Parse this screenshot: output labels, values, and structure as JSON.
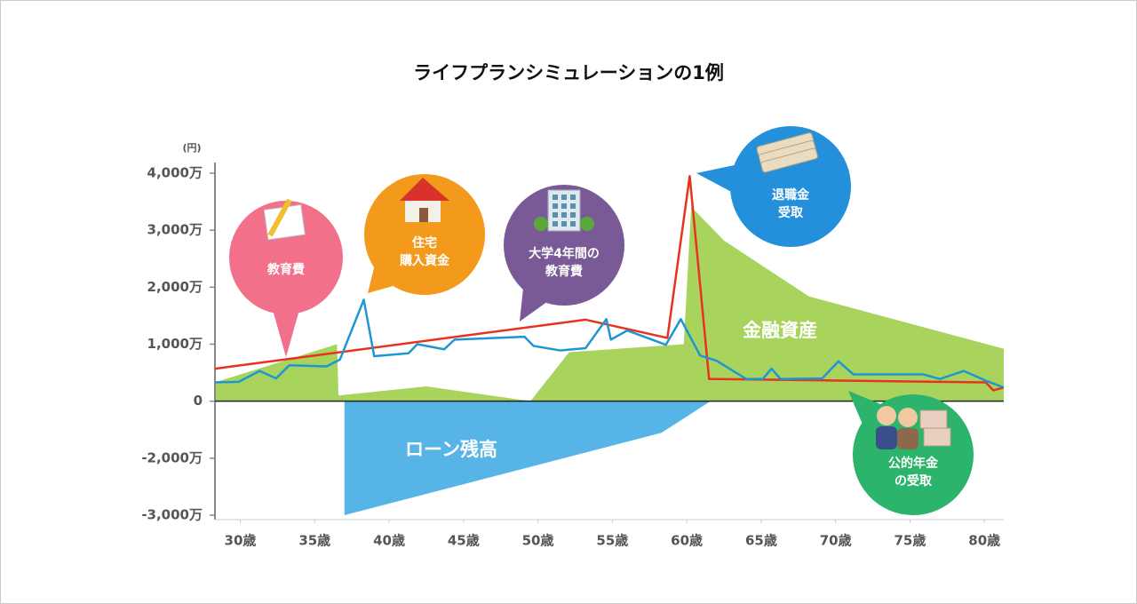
{
  "chart_data": {
    "type": "line",
    "title": "ライフプランシミュレーションの1例",
    "y_unit": "(円)",
    "xlim": [
      28.3,
      81.3
    ],
    "xticks": [
      {
        "value": 30,
        "label": "30歳"
      },
      {
        "value": 35,
        "label": "35歳"
      },
      {
        "value": 40,
        "label": "40歳"
      },
      {
        "value": 45,
        "label": "45歳"
      },
      {
        "value": 50,
        "label": "50歳"
      },
      {
        "value": 55,
        "label": "55歳"
      },
      {
        "value": 60,
        "label": "60歳"
      },
      {
        "value": 65,
        "label": "65歳"
      },
      {
        "value": 70,
        "label": "70歳"
      },
      {
        "value": 75,
        "label": "75歳"
      },
      {
        "value": 80,
        "label": "80歳"
      }
    ],
    "ylim": [
      -3000,
      4000
    ],
    "yticks": [
      {
        "value": 4000,
        "label": "4,000万"
      },
      {
        "value": 3000,
        "label": "3,000万"
      },
      {
        "value": 2000,
        "label": "2,000万"
      },
      {
        "value": 1000,
        "label": "1,000万"
      },
      0,
      {
        "value": -2000,
        "label": "-2,000万"
      },
      {
        "value": -3000,
        "label": "-3,000万"
      }
    ],
    "series": [
      {
        "type": "area",
        "color": "#a8d45e",
        "x": [
          28.3,
          36.5,
          36.6,
          42.5,
          49.5,
          52.1,
          59.8,
          60.3,
          62.5,
          68.2,
          81.3
        ],
        "values": [
          330,
          1000,
          100,
          260,
          0,
          860,
          1000,
          3410,
          2820,
          1840,
          920
        ]
      },
      {
        "type": "area",
        "color": "#56b4e6",
        "x": [
          37.0,
          37.0,
          58.3,
          61.6
        ],
        "values": [
          0,
          -3000,
          -1110,
          0
        ]
      },
      {
        "type": "line",
        "color": "#e8321e",
        "x": [
          28.3,
          53.2,
          58.7,
          60.2,
          61.5,
          80.1,
          80.6,
          81.3
        ],
        "values": [
          570,
          1430,
          1110,
          3950,
          390,
          330,
          190,
          240
        ]
      },
      {
        "type": "line",
        "color": "#1e96d2",
        "x": [
          28.3,
          29.9,
          31.3,
          32.4,
          33.3,
          35.8,
          36.7,
          38.3,
          39.0,
          41.3,
          41.9,
          43.7,
          44.4,
          49.1,
          49.7,
          51.5,
          53.2,
          54.6,
          54.9,
          56.0,
          58.6,
          59.6,
          60.9,
          62.0,
          64.0,
          65.1,
          65.7,
          66.3,
          69.1,
          70.2,
          71.2,
          75.9,
          77.0,
          78.6,
          80.1,
          81.3
        ],
        "values": [
          330,
          340,
          530,
          400,
          630,
          610,
          730,
          1780,
          790,
          840,
          1000,
          910,
          1080,
          1130,
          970,
          890,
          930,
          1440,
          1080,
          1240,
          990,
          1440,
          800,
          710,
          390,
          390,
          570,
          390,
          400,
          700,
          470,
          470,
          390,
          530,
          360,
          240
        ]
      }
    ],
    "annotations": [
      "金融資産",
      "ローン残高"
    ],
    "callouts": [
      {
        "lines": [
          "教育費"
        ],
        "color": "#f2708a"
      },
      {
        "lines": [
          "住宅",
          "購入資金"
        ],
        "color": "#f39a1c"
      },
      {
        "lines": [
          "大学4年間の",
          "教育費"
        ],
        "color": "#7a5a96"
      },
      {
        "lines": [
          "退職金",
          "受取"
        ],
        "color": "#2490dc"
      },
      {
        "lines": [
          "公的年金",
          "の受取"
        ],
        "color": "#2cb36c"
      }
    ]
  }
}
